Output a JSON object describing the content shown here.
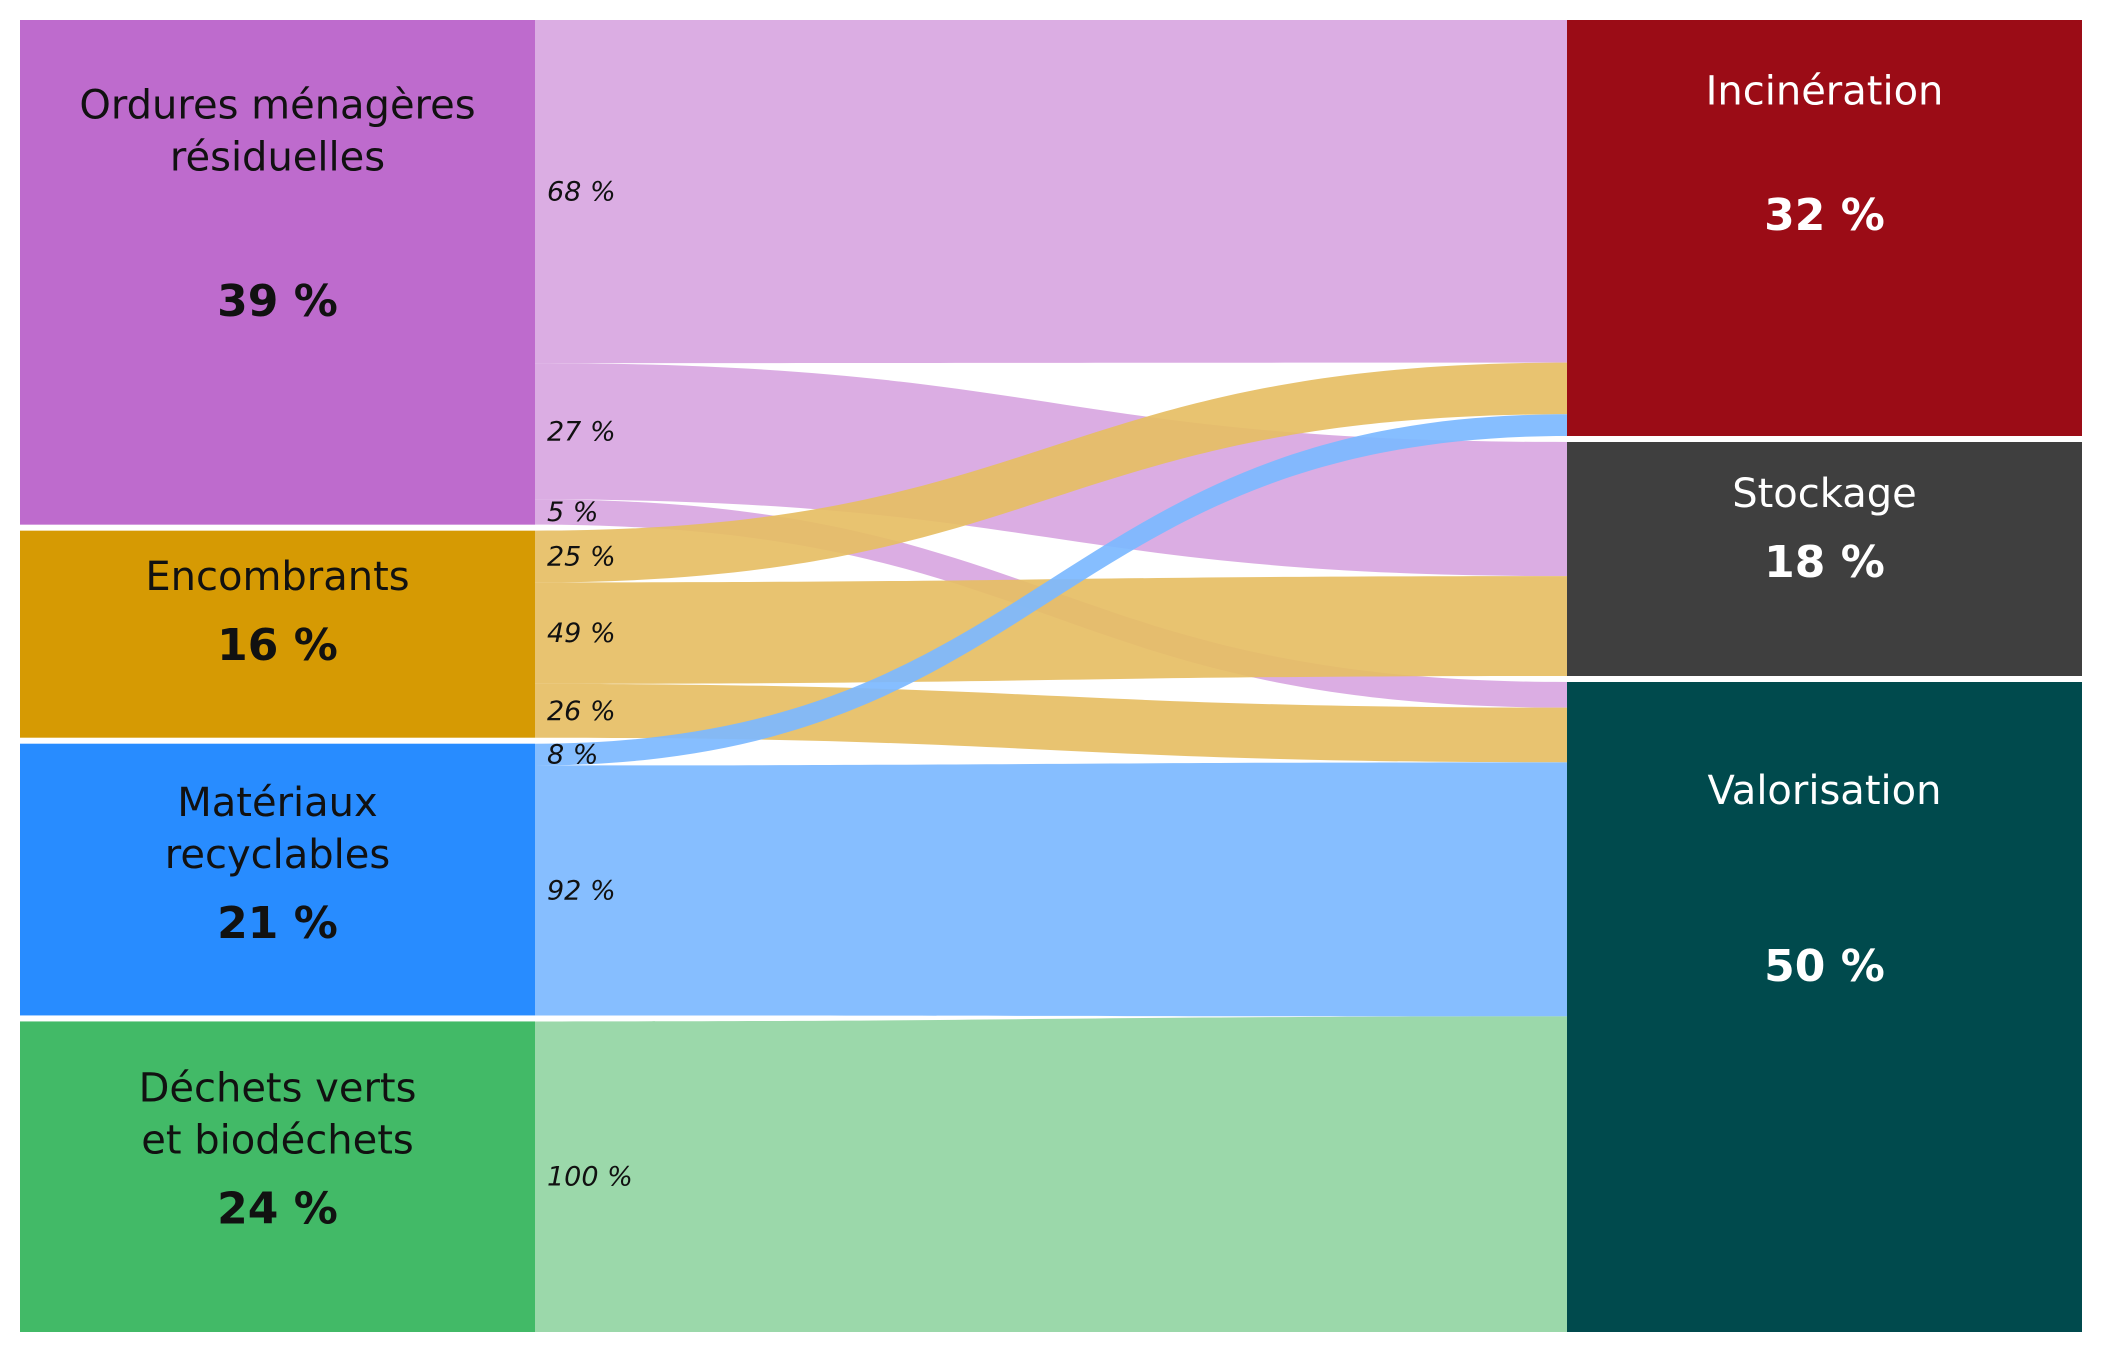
{
  "chart_data": {
    "type": "sankey",
    "sources": [
      {
        "id": "omr",
        "label_lines": [
          "Ordures ménagères",
          "résiduelles"
        ],
        "share": 39,
        "value_label": "39 %",
        "color": "#BE6BCD",
        "flow_color": "#D8A6E1",
        "text_color": "#111111"
      },
      {
        "id": "enc",
        "label_lines": [
          "Encombrants"
        ],
        "share": 16,
        "value_label": "16 %",
        "color": "#D69A03",
        "flow_color": "#E6BE64",
        "text_color": "#111111"
      },
      {
        "id": "mat",
        "label_lines": [
          "Matériaux",
          "recyclables"
        ],
        "share": 21,
        "value_label": "21 %",
        "color": "#288CFF",
        "flow_color": "#7CB8FF",
        "text_color": "#111111"
      },
      {
        "id": "dv",
        "label_lines": [
          "Déchets verts",
          "et biodéchets"
        ],
        "share": 24,
        "value_label": "24 %",
        "color": "#42BA67",
        "flow_color": "#92D5A3",
        "text_color": "#111111"
      }
    ],
    "targets": [
      {
        "id": "inc",
        "label_lines": [
          "Incinération"
        ],
        "share": 32,
        "value_label": "32 %",
        "color": "#9B0C16",
        "text_color": "#ffffff"
      },
      {
        "id": "sto",
        "label_lines": [
          "Stockage"
        ],
        "share": 18,
        "value_label": "18 %",
        "color": "#3F3F3F",
        "text_color": "#ffffff"
      },
      {
        "id": "val",
        "label_lines": [
          "Valorisation"
        ],
        "share": 50,
        "value_label": "50 %",
        "color": "#004A4D",
        "text_color": "#ffffff"
      }
    ],
    "flows": [
      {
        "source": "omr",
        "target": "inc",
        "pct": 68,
        "label": "68 %"
      },
      {
        "source": "omr",
        "target": "sto",
        "pct": 27,
        "label": "27 %"
      },
      {
        "source": "omr",
        "target": "val",
        "pct": 5,
        "label": "5 %"
      },
      {
        "source": "enc",
        "target": "inc",
        "pct": 25,
        "label": "25 %"
      },
      {
        "source": "enc",
        "target": "sto",
        "pct": 49,
        "label": "49 %"
      },
      {
        "source": "enc",
        "target": "val",
        "pct": 26,
        "label": "26 %"
      },
      {
        "source": "mat",
        "target": "inc",
        "pct": 8,
        "label": "8 %"
      },
      {
        "source": "mat",
        "target": "val",
        "pct": 92,
        "label": "92 %"
      },
      {
        "source": "dv",
        "target": "val",
        "pct": 100,
        "label": "100 %"
      }
    ]
  }
}
